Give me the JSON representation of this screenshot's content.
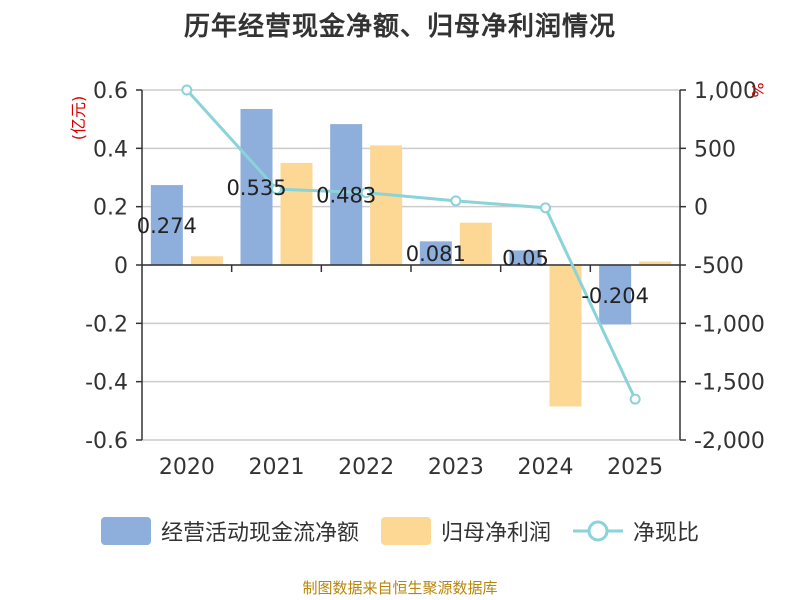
{
  "title": "历年经营现金净额、归母净利润情况",
  "chart_data": {
    "type": "bar",
    "categories": [
      "2020",
      "2021",
      "2022",
      "2023",
      "2024",
      "2025"
    ],
    "series": [
      {
        "name": "经营活动现金流净额",
        "type": "bar",
        "axis": "left",
        "color": "#8eaedc",
        "values": [
          0.274,
          0.535,
          0.483,
          0.081,
          0.05,
          -0.204
        ]
      },
      {
        "name": "归母净利润",
        "type": "bar",
        "axis": "left",
        "color": "#fdd794",
        "values": [
          0.03,
          0.35,
          0.41,
          0.145,
          -0.485,
          0.012
        ]
      },
      {
        "name": "净现比",
        "type": "line",
        "axis": "right",
        "color": "#8ad3d8",
        "values": [
          1000,
          150,
          120,
          50,
          -10,
          -1650
        ]
      }
    ],
    "data_labels": [
      "0.274",
      "0.535",
      "0.483",
      "0.081",
      "0.05",
      "-0.204"
    ],
    "left_axis": {
      "unit": "(亿元)",
      "min": -0.6,
      "max": 0.6,
      "ticks": [
        0.6,
        0.4,
        0.2,
        0,
        -0.2,
        -0.4,
        -0.6
      ],
      "tick_labels": [
        "0.6",
        "0.4",
        "0.2",
        "0",
        "-0.2",
        "-0.4",
        "-0.6"
      ]
    },
    "right_axis": {
      "unit": "%",
      "min": -2000,
      "max": 1000,
      "ticks": [
        1000,
        500,
        0,
        -500,
        -1000,
        -1500,
        -2000
      ],
      "tick_labels": [
        "1,000",
        "500",
        "0",
        "-500",
        "-1,000",
        "-1,500",
        "-2,000"
      ]
    },
    "grid": true,
    "legend_position": "bottom"
  },
  "legend": [
    {
      "label": "经营活动现金流净额",
      "color": "#8eaedc",
      "kind": "bar"
    },
    {
      "label": "归母净利润",
      "color": "#fdd794",
      "kind": "bar"
    },
    {
      "label": "净现比",
      "color": "#8ad3d8",
      "kind": "line"
    }
  ],
  "source": "制图数据来自恒生聚源数据库"
}
